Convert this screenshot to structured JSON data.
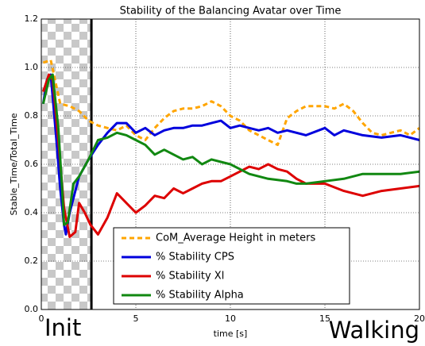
{
  "chart_data": {
    "type": "line",
    "title": "Stability of the Balancing Avatar over Time",
    "xlabel": "time [s]",
    "ylabel": "Stable_Time/Total_Time",
    "xlim": [
      0,
      20
    ],
    "ylim": [
      0,
      1.2
    ],
    "xticks": [
      0,
      5,
      10,
      15,
      20
    ],
    "yticks": [
      {
        "value": 0,
        "label": "0.0"
      },
      0.2,
      0.4,
      0.6,
      0.8,
      {
        "value": 1,
        "label": "1.0"
      },
      1.2
    ],
    "grid": true,
    "span": [
      0,
      2.65
    ],
    "annotations": [
      "Init",
      "Walking"
    ],
    "series": [
      {
        "name": "CoM_Average Height in meters",
        "color": "#ffa500",
        "linestyle": "dashed",
        "x": [
          0.1,
          0.5,
          1,
          1.5,
          2,
          2.5,
          3,
          3.5,
          4,
          4.5,
          5,
          5.5,
          6,
          6.5,
          7,
          7.5,
          8,
          8.5,
          9,
          9.5,
          10,
          10.5,
          11,
          11.5,
          12,
          12.5,
          13,
          13.5,
          14,
          14.5,
          15,
          15.5,
          16,
          16.5,
          17,
          17.5,
          18,
          18.5,
          19,
          19.5,
          20
        ],
        "values": [
          1.02,
          1.03,
          0.85,
          0.84,
          0.82,
          0.78,
          0.76,
          0.75,
          0.74,
          0.76,
          0.72,
          0.7,
          0.75,
          0.79,
          0.82,
          0.83,
          0.83,
          0.84,
          0.86,
          0.84,
          0.8,
          0.78,
          0.74,
          0.72,
          0.7,
          0.68,
          0.79,
          0.82,
          0.84,
          0.84,
          0.84,
          0.83,
          0.85,
          0.82,
          0.77,
          0.73,
          0.72,
          0.73,
          0.74,
          0.72,
          0.75
        ]
      },
      {
        "name": "% Stability CPS",
        "color": "#0000dd",
        "linestyle": "solid",
        "x": [
          0.1,
          0.3,
          0.5,
          0.8,
          1,
          1.2,
          1.3,
          1.5,
          2,
          2.5,
          3,
          3.5,
          4,
          4.5,
          5,
          5.5,
          6,
          6.5,
          7,
          7.5,
          8,
          8.5,
          9,
          9.5,
          10,
          10.5,
          11,
          11.5,
          12,
          12.5,
          13,
          14,
          15,
          15.5,
          16,
          17,
          18,
          19,
          20
        ],
        "values": [
          0.85,
          0.95,
          0.97,
          0.7,
          0.5,
          0.35,
          0.31,
          0.4,
          0.55,
          0.62,
          0.68,
          0.73,
          0.77,
          0.77,
          0.73,
          0.75,
          0.72,
          0.74,
          0.75,
          0.75,
          0.76,
          0.76,
          0.77,
          0.78,
          0.75,
          0.76,
          0.75,
          0.74,
          0.75,
          0.73,
          0.74,
          0.72,
          0.75,
          0.72,
          0.74,
          0.72,
          0.71,
          0.72,
          0.7
        ]
      },
      {
        "name": "% Stability Xl",
        "color": "#dd0000",
        "linestyle": "solid",
        "x": [
          0.1,
          0.4,
          0.6,
          0.9,
          1.2,
          1.5,
          1.8,
          2,
          2.3,
          2.6,
          3,
          3.5,
          4,
          4.5,
          5,
          5.5,
          6,
          6.5,
          7,
          7.5,
          8,
          8.5,
          9,
          9.5,
          10,
          10.5,
          11,
          11.5,
          12,
          12.5,
          13,
          13.5,
          14,
          15,
          16,
          17,
          18,
          19,
          20
        ],
        "values": [
          0.9,
          0.97,
          0.95,
          0.7,
          0.42,
          0.3,
          0.32,
          0.44,
          0.4,
          0.35,
          0.31,
          0.38,
          0.48,
          0.44,
          0.4,
          0.43,
          0.47,
          0.46,
          0.5,
          0.48,
          0.5,
          0.52,
          0.53,
          0.53,
          0.55,
          0.57,
          0.59,
          0.58,
          0.6,
          0.58,
          0.57,
          0.54,
          0.52,
          0.52,
          0.49,
          0.47,
          0.49,
          0.5,
          0.51
        ]
      },
      {
        "name": "% Stability Alpha",
        "color": "#118811",
        "linestyle": "solid",
        "x": [
          0.1,
          0.4,
          0.6,
          0.9,
          1.1,
          1.2,
          1.4,
          1.7,
          2,
          2.5,
          3,
          3.5,
          4,
          4.5,
          5,
          5.5,
          6,
          6.5,
          7,
          7.5,
          8,
          8.5,
          9,
          9.5,
          10,
          10.5,
          11,
          12,
          13,
          13.5,
          14,
          15,
          16,
          17,
          18,
          19,
          20
        ],
        "values": [
          0.85,
          0.95,
          0.97,
          0.75,
          0.5,
          0.35,
          0.36,
          0.52,
          0.55,
          0.62,
          0.7,
          0.71,
          0.73,
          0.72,
          0.7,
          0.68,
          0.64,
          0.66,
          0.64,
          0.62,
          0.63,
          0.6,
          0.62,
          0.61,
          0.6,
          0.58,
          0.56,
          0.54,
          0.53,
          0.52,
          0.52,
          0.53,
          0.54,
          0.56,
          0.56,
          0.56,
          0.57
        ]
      }
    ]
  }
}
